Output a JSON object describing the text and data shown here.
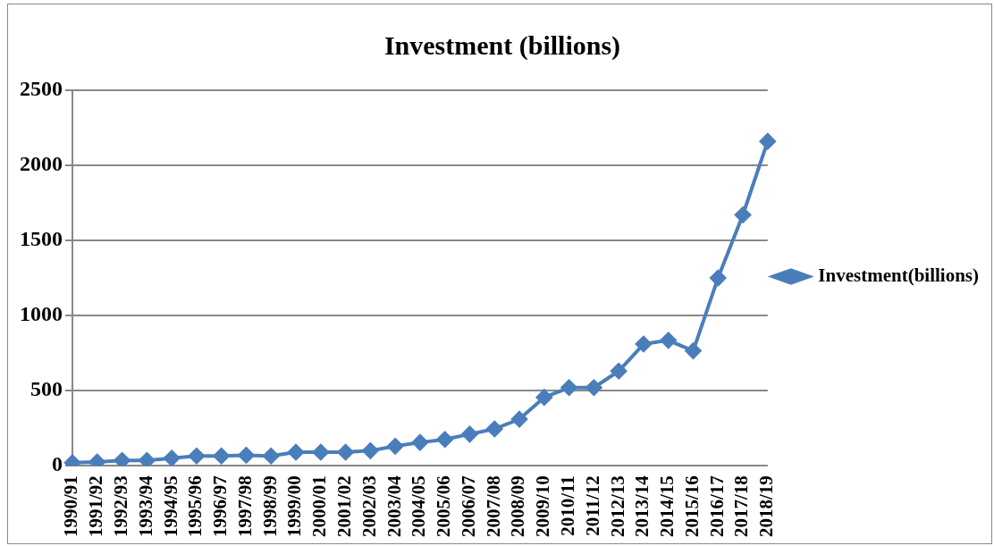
{
  "chart_data": {
    "type": "line",
    "title": "Investment (billions)",
    "categories": [
      "1990/91",
      "1991/92",
      "1992/93",
      "1993/94",
      "1994/95",
      "1995/96",
      "1996/97",
      "1997/98",
      "1998/99",
      "1999/00",
      "2000/01",
      "2001/02",
      "2002/03",
      "2003/04",
      "2004/05",
      "2005/06",
      "2006/07",
      "2007/08",
      "2008/09",
      "2009/10",
      "2010/11",
      "2011/12",
      "2012/13",
      "2013/14",
      "2014/15",
      "2015/16",
      "2016/17",
      "2017/18",
      "2018/19"
    ],
    "series": [
      {
        "name": "Investment(billions)",
        "color": "#4a7ebb",
        "values": [
          20,
          25,
          35,
          35,
          50,
          65,
          65,
          70,
          65,
          90,
          90,
          90,
          100,
          130,
          155,
          175,
          210,
          245,
          310,
          455,
          520,
          520,
          630,
          810,
          835,
          765,
          1250,
          1670,
          2160
        ]
      }
    ],
    "ylim": [
      0,
      2500
    ],
    "yticks": [
      0,
      500,
      1000,
      1500,
      2000,
      2500
    ],
    "grid": "y",
    "legend": "right",
    "marker": "diamond",
    "line_style": "solid"
  }
}
